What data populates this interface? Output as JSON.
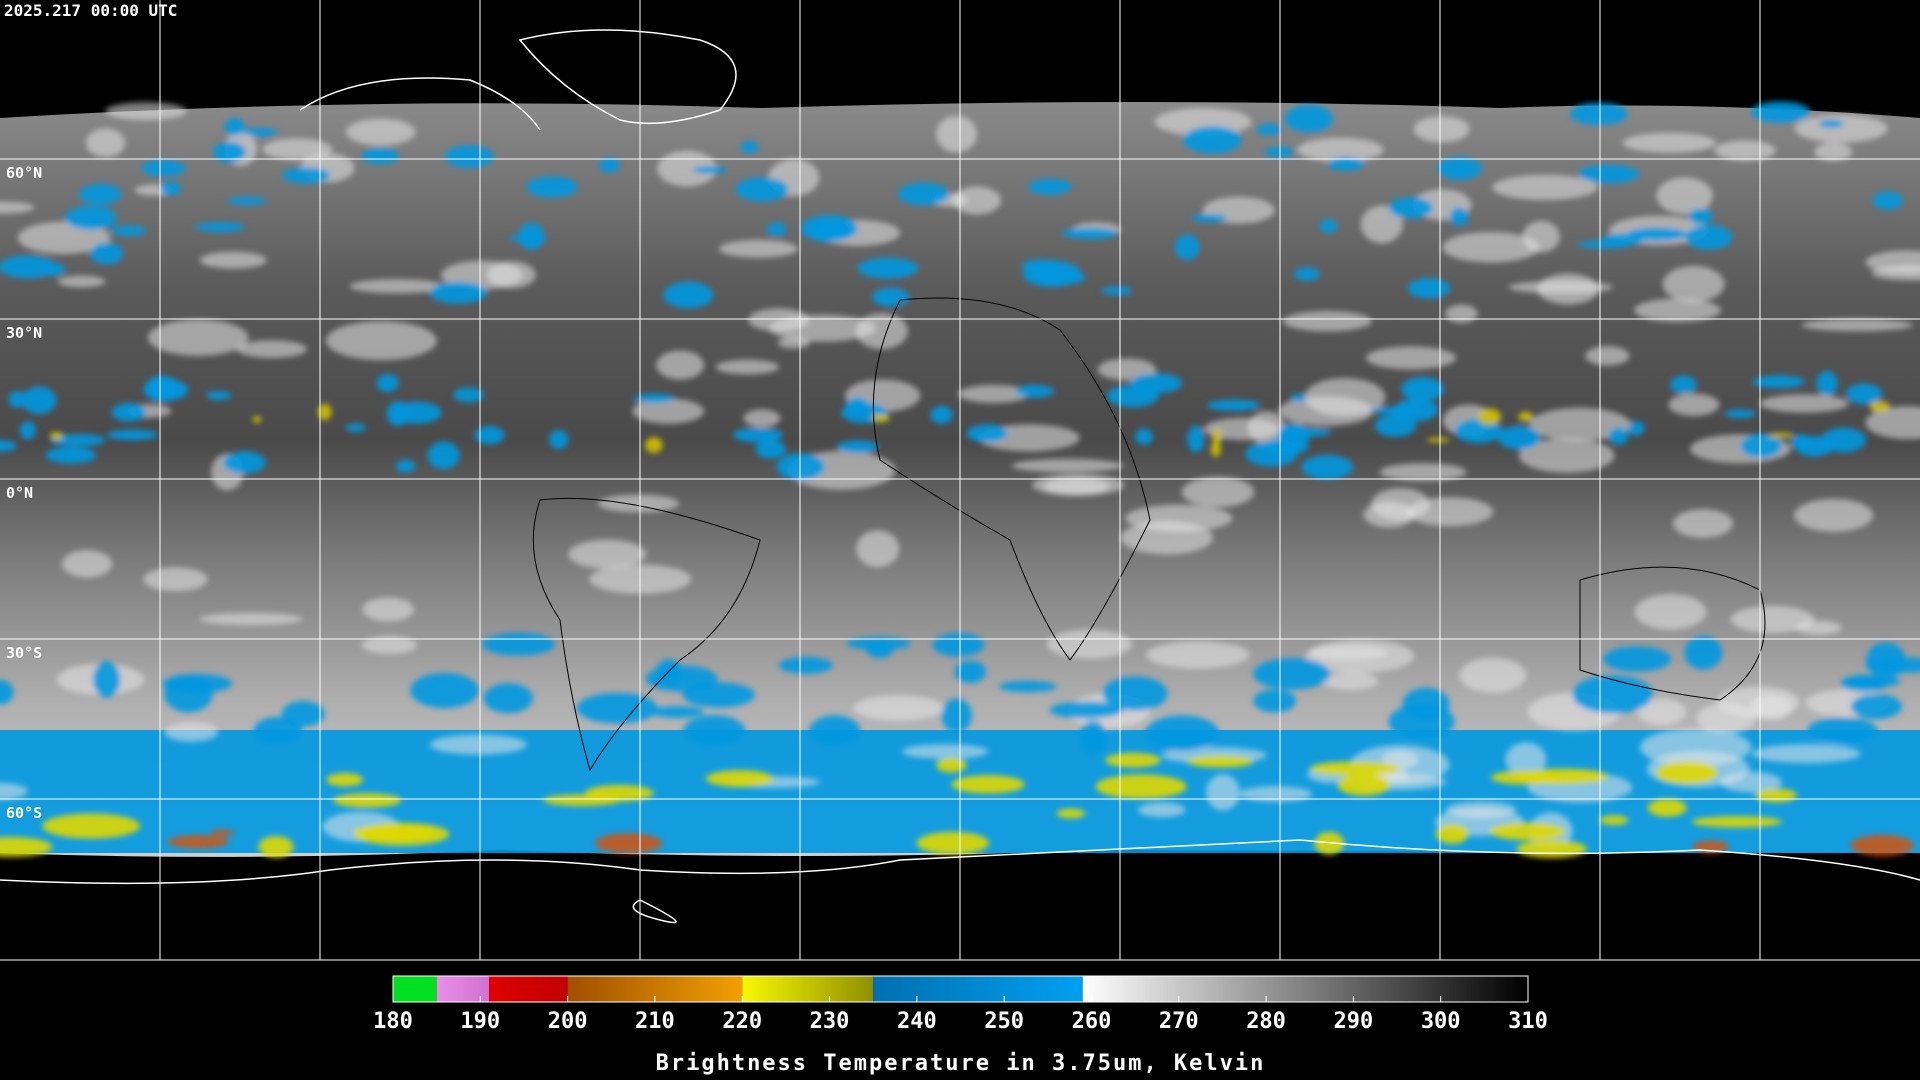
{
  "timestamp": "2025.217 00:00 UTC",
  "lat_lines": [
    {
      "value": 60,
      "label": "60°N"
    },
    {
      "value": 30,
      "label": "30°N"
    },
    {
      "value": 0,
      "label": "0°N"
    },
    {
      "value": -30,
      "label": "30°S"
    },
    {
      "value": -60,
      "label": "60°S"
    }
  ],
  "colorbar": {
    "title": "Brightness Temperature in 3.75um, Kelvin",
    "range": [
      180,
      310
    ],
    "ticks": [
      180,
      190,
      200,
      210,
      220,
      230,
      240,
      250,
      260,
      270,
      280,
      290,
      300,
      310
    ],
    "segments": [
      {
        "range": [
          180,
          185
        ],
        "colors": [
          "#00e020",
          "#00e020"
        ]
      },
      {
        "range": [
          185,
          191
        ],
        "colors": [
          "#e890e8",
          "#d070d0"
        ]
      },
      {
        "range": [
          191,
          200
        ],
        "colors": [
          "#e00000",
          "#c00000"
        ]
      },
      {
        "range": [
          200,
          220
        ],
        "colors": [
          "#a05000",
          "#f0a000"
        ]
      },
      {
        "range": [
          220,
          235
        ],
        "colors": [
          "#f8f800",
          "#909000"
        ]
      },
      {
        "range": [
          235,
          259
        ],
        "colors": [
          "#0070b0",
          "#00a0f0"
        ]
      },
      {
        "range": [
          259,
          310
        ],
        "colors": [
          "#ffffff",
          "#000000"
        ]
      }
    ]
  }
}
